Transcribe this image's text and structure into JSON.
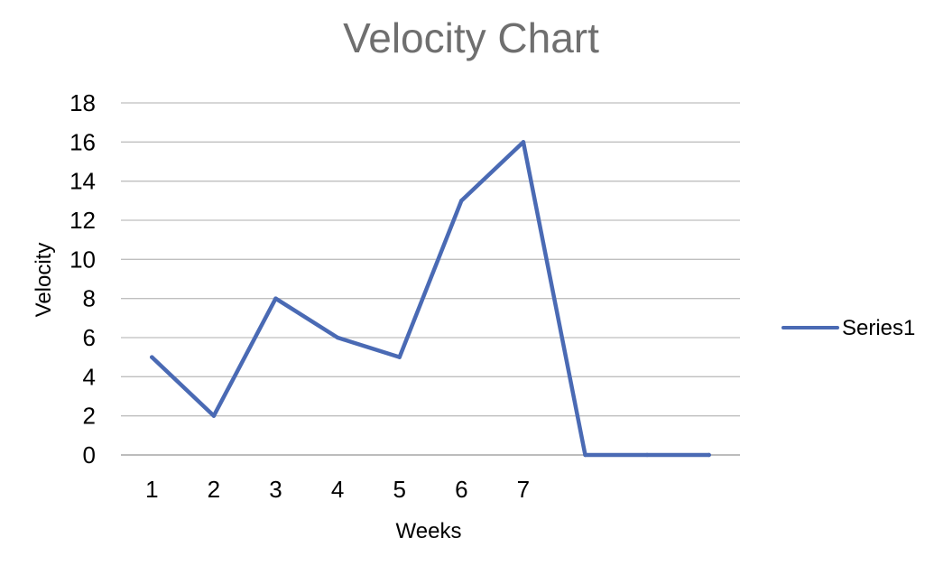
{
  "chart_data": {
    "type": "line",
    "title": "Velocity Chart",
    "xlabel": "Weeks",
    "ylabel": "Velocity",
    "categories": [
      "1",
      "2",
      "3",
      "4",
      "5",
      "6",
      "7",
      "",
      "",
      ""
    ],
    "series": [
      {
        "name": "Series1",
        "values": [
          5,
          2,
          8,
          6,
          5,
          13,
          16,
          0,
          0,
          0
        ],
        "color": "#4a6ab4"
      }
    ],
    "ylim": [
      0,
      18
    ],
    "yticks": [
      0,
      2,
      4,
      6,
      8,
      10,
      12,
      14,
      16,
      18
    ],
    "grid": true,
    "legend_position": "right"
  }
}
